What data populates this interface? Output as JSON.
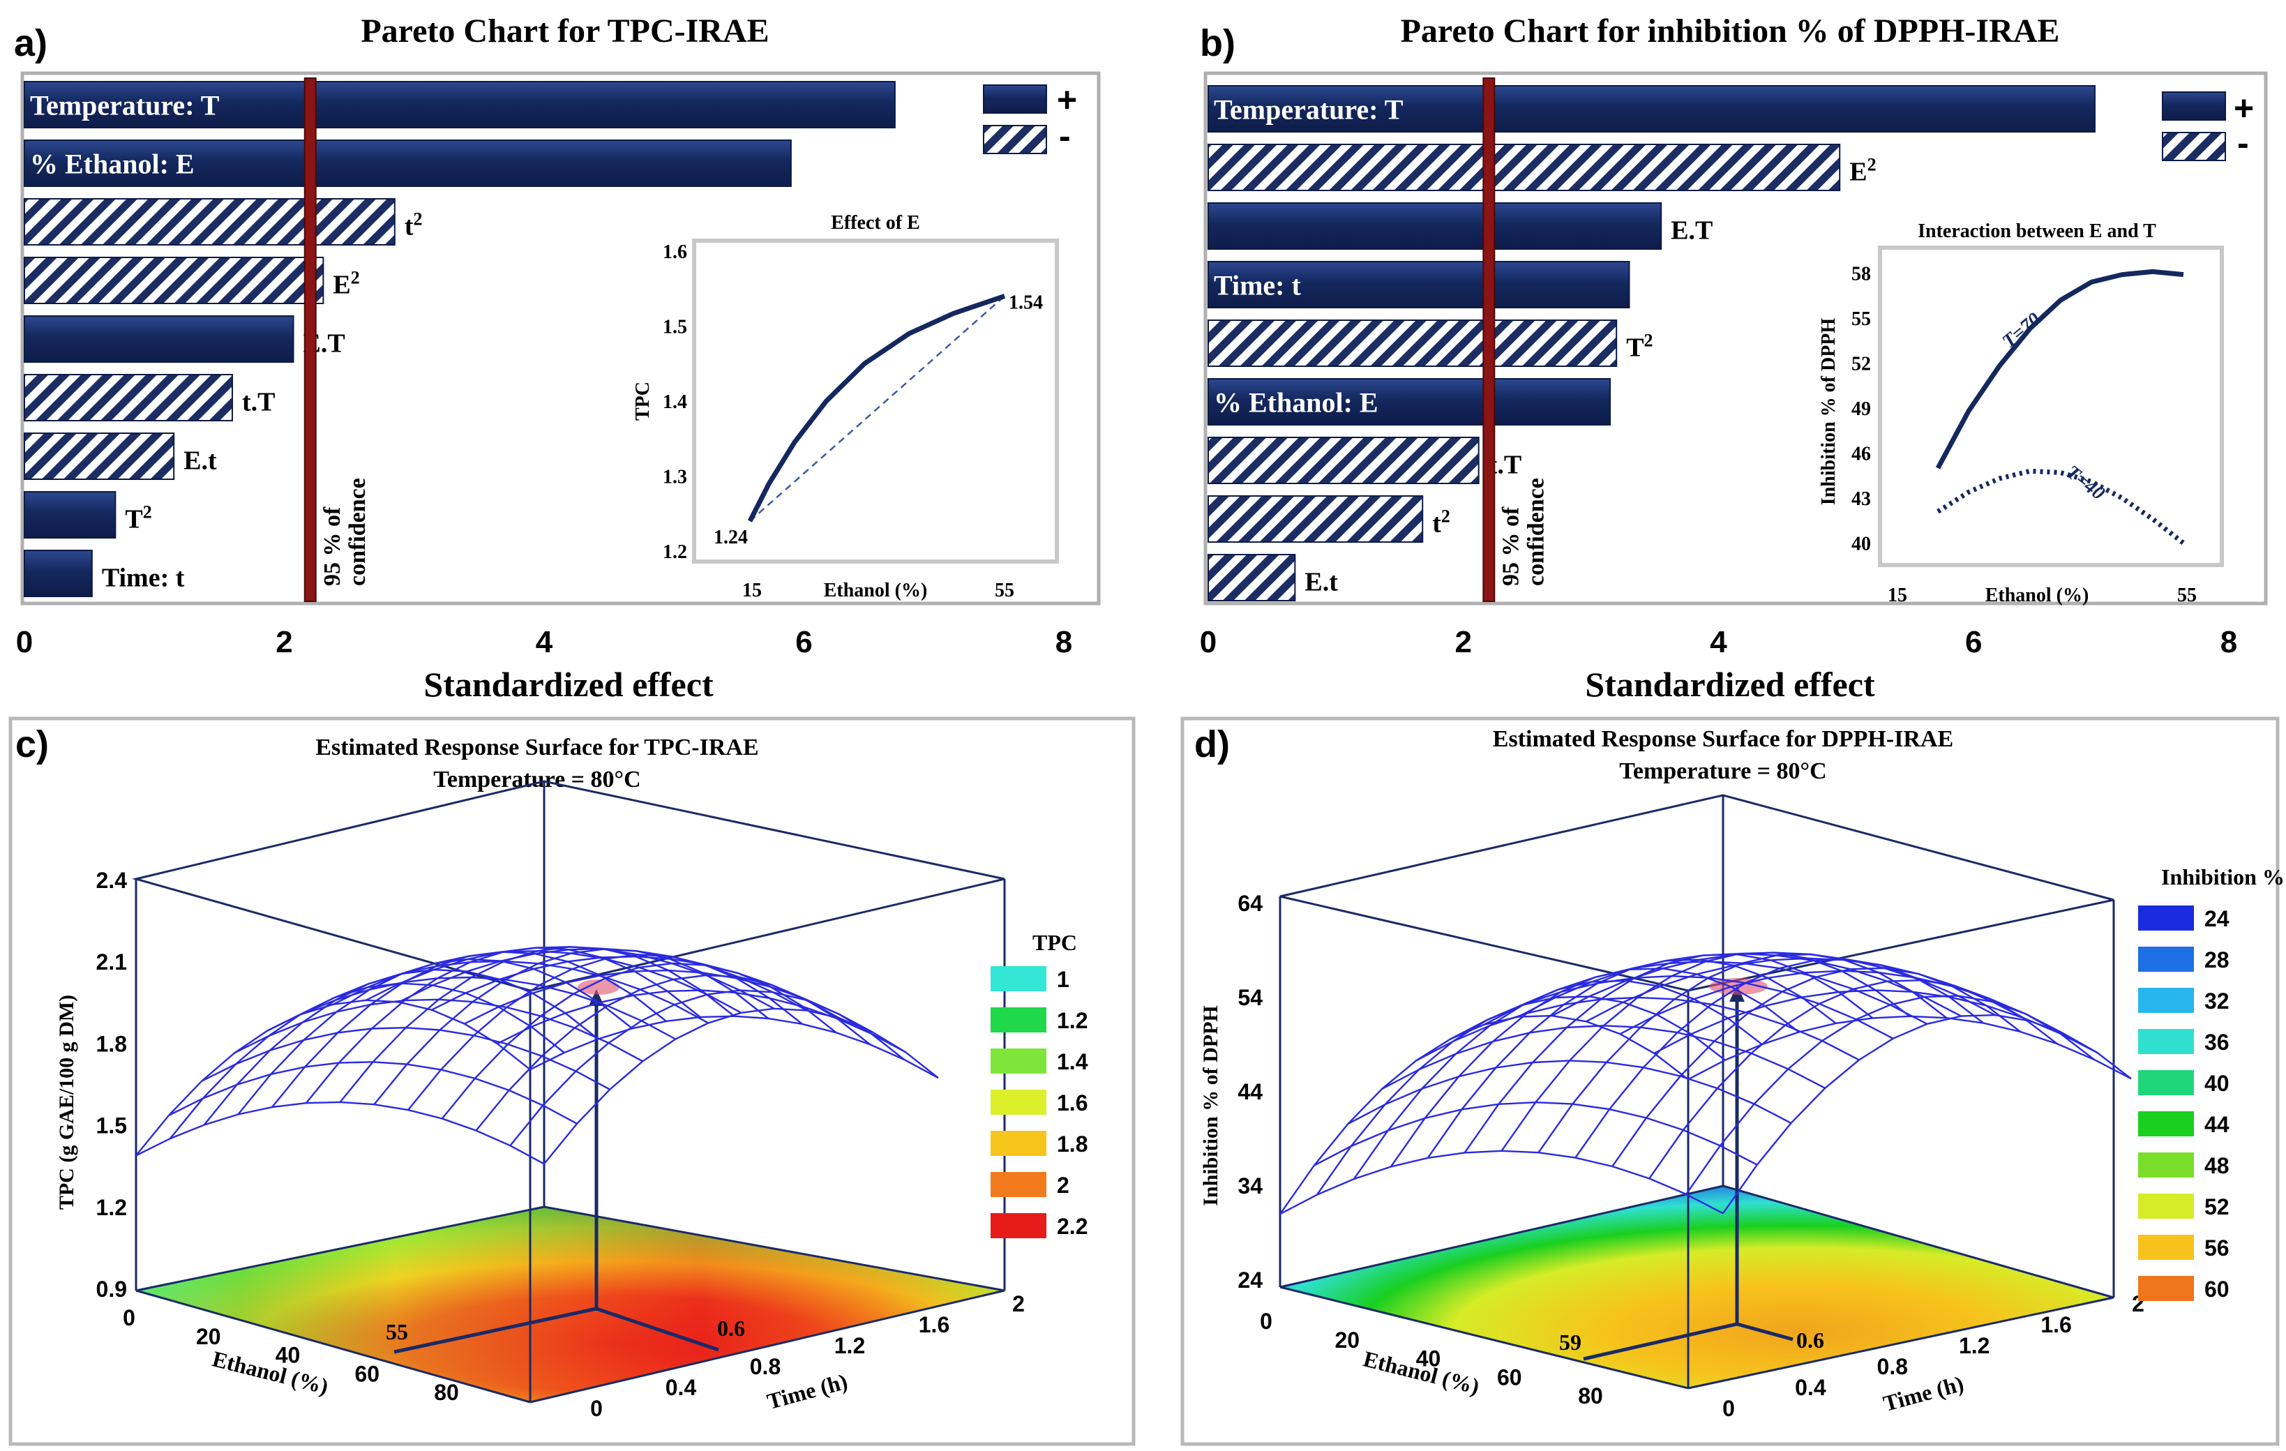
{
  "chart_data": [
    {
      "panel": "a)",
      "type": "bar",
      "title": "Pareto Chart for TPC-IRAE",
      "xlabel": "Standardized effect",
      "xlim": [
        0,
        8
      ],
      "xticks": [
        "0",
        "2",
        "4",
        "6",
        "8"
      ],
      "confidence_line": 2.2,
      "confidence_label": "95 % of confidence",
      "legend": {
        "plus": "+",
        "minus": "-"
      },
      "bars": [
        {
          "label": "Temperature:  T",
          "value": 6.7,
          "sign": "+",
          "label_inside": true
        },
        {
          "label": "% Ethanol: E",
          "value": 5.9,
          "sign": "+",
          "label_inside": true
        },
        {
          "label": "t²",
          "value": 2.85,
          "sign": "-",
          "label_inside": false
        },
        {
          "label": "E²",
          "value": 2.3,
          "sign": "-",
          "label_inside": false
        },
        {
          "label": "E.T",
          "value": 2.07,
          "sign": "+",
          "label_inside": false
        },
        {
          "label": "t.T",
          "value": 1.6,
          "sign": "-",
          "label_inside": false
        },
        {
          "label": "E.t",
          "value": 1.15,
          "sign": "-",
          "label_inside": false
        },
        {
          "label": "T²",
          "value": 0.7,
          "sign": "+",
          "label_inside": false
        },
        {
          "label": "Time: t",
          "value": 0.52,
          "sign": "+",
          "label_inside": false
        }
      ],
      "inset": {
        "title": "Effect of E",
        "xlabel": "Ethanol (%)",
        "ylabel": "TPC",
        "xticks": [
          "15",
          "55"
        ],
        "yticks": [
          "1.2",
          "1.3",
          "1.4",
          "1.5",
          "1.6"
        ],
        "ylim": [
          1.2,
          1.6
        ],
        "start_label": "1.24",
        "end_label": "1.54",
        "curve": [
          [
            15,
            1.24
          ],
          [
            18,
            1.29
          ],
          [
            22,
            1.345
          ],
          [
            27,
            1.4
          ],
          [
            33,
            1.45
          ],
          [
            40,
            1.49
          ],
          [
            47,
            1.517
          ],
          [
            55,
            1.54
          ]
        ]
      }
    },
    {
      "panel": "b)",
      "type": "bar",
      "title": "Pareto Chart for inhibition % of DPPH-IRAE",
      "xlabel": "Standardized effect",
      "xlim": [
        0,
        8
      ],
      "xticks": [
        "0",
        "2",
        "4",
        "6",
        "8"
      ],
      "confidence_line": 2.2,
      "confidence_label": "95 % of confidence",
      "legend": {
        "plus": "+",
        "minus": "-"
      },
      "bars": [
        {
          "label": "Temperature:  T",
          "value": 6.95,
          "sign": "+",
          "label_inside": true
        },
        {
          "label": "E²",
          "value": 4.95,
          "sign": "-",
          "label_inside": false
        },
        {
          "label": "E.T",
          "value": 3.55,
          "sign": "+",
          "label_inside": false
        },
        {
          "label": "Time: t",
          "value": 3.3,
          "sign": "+",
          "label_inside": true
        },
        {
          "label": "T²",
          "value": 3.2,
          "sign": "-",
          "label_inside": false
        },
        {
          "label": "% Ethanol: E",
          "value": 3.15,
          "sign": "+",
          "label_inside": true
        },
        {
          "label": "t.T",
          "value": 2.12,
          "sign": "-",
          "label_inside": false
        },
        {
          "label": "t²",
          "value": 1.68,
          "sign": "-",
          "label_inside": false
        },
        {
          "label": "E.t",
          "value": 0.68,
          "sign": "-",
          "label_inside": false
        }
      ],
      "inset": {
        "title": "Interaction between E and T",
        "xlabel": "Ethanol (%)",
        "ylabel": "Inhibition  % of DPPH",
        "xticks": [
          "15",
          "55"
        ],
        "yticks": [
          "40",
          "43",
          "46",
          "49",
          "52",
          "55",
          "58"
        ],
        "ylim": [
          39,
          59
        ],
        "series": [
          {
            "name": "T=70",
            "points": [
              [
                15,
                45
              ],
              [
                20,
                48.8
              ],
              [
                25,
                51.8
              ],
              [
                30,
                54.3
              ],
              [
                35,
                56.2
              ],
              [
                40,
                57.4
              ],
              [
                45,
                57.9
              ],
              [
                50,
                58.1
              ],
              [
                55,
                57.9
              ]
            ]
          },
          {
            "name": "T=40",
            "points": [
              [
                15,
                42.1
              ],
              [
                20,
                43.4
              ],
              [
                25,
                44.3
              ],
              [
                30,
                44.8
              ],
              [
                35,
                44.7
              ],
              [
                40,
                44.1
              ],
              [
                45,
                43
              ],
              [
                50,
                41.6
              ],
              [
                55,
                40
              ]
            ]
          }
        ]
      }
    },
    {
      "panel": "c)",
      "type": "surface",
      "title": "Estimated Response Surface for TPC-IRAE",
      "subtitle": "Temperature = 80°C",
      "zlabel": "TPC (g GAE/100 g DM)",
      "zticks": [
        "0.9",
        "1.2",
        "1.5",
        "1.8",
        "2.1",
        "2.4"
      ],
      "xlabel": "Ethanol  (%)",
      "xticks": [
        "0",
        "20",
        "40",
        "60",
        "80"
      ],
      "ylabel": "Time (h)",
      "yticks": [
        "0",
        "0.4",
        "0.8",
        "1.2",
        "1.6",
        "2"
      ],
      "optimum_labels": [
        "55",
        "0.6"
      ],
      "legend_title": "TPC",
      "legend": [
        {
          "label": "1",
          "color": "#33e6d6"
        },
        {
          "label": "1.2",
          "color": "#1fd84a"
        },
        {
          "label": "1.4",
          "color": "#7ee63a"
        },
        {
          "label": "1.6",
          "color": "#dcef2a"
        },
        {
          "label": "1.8",
          "color": "#f7c51c"
        },
        {
          "label": "2",
          "color": "#f07a1c"
        },
        {
          "label": "2.2",
          "color": "#e81b1b"
        }
      ]
    },
    {
      "panel": "d)",
      "type": "surface",
      "title": "Estimated Response Surface for DPPH-IRAE",
      "subtitle": "Temperature = 80°C",
      "zlabel": "Inhibition  % of DPPH",
      "zticks": [
        "24",
        "34",
        "44",
        "54",
        "64"
      ],
      "xlabel": "Ethanol  (%)",
      "xticks": [
        "0",
        "20",
        "40",
        "60",
        "80"
      ],
      "ylabel": "Time (h)",
      "yticks": [
        "0",
        "0.4",
        "0.8",
        "1.2",
        "1.6",
        "2"
      ],
      "optimum_labels": [
        "59",
        "0.6"
      ],
      "legend_title": "Inhibition %",
      "legend": [
        {
          "label": "24",
          "color": "#1a2be0"
        },
        {
          "label": "28",
          "color": "#1f6fe6"
        },
        {
          "label": "32",
          "color": "#27b6ee"
        },
        {
          "label": "36",
          "color": "#2fe0d0"
        },
        {
          "label": "40",
          "color": "#1fd77a"
        },
        {
          "label": "44",
          "color": "#19cf1f"
        },
        {
          "label": "48",
          "color": "#7ade2a"
        },
        {
          "label": "52",
          "color": "#d6ec27"
        },
        {
          "label": "56",
          "color": "#f7c21c"
        },
        {
          "label": "60",
          "color": "#f0751c"
        }
      ]
    }
  ]
}
